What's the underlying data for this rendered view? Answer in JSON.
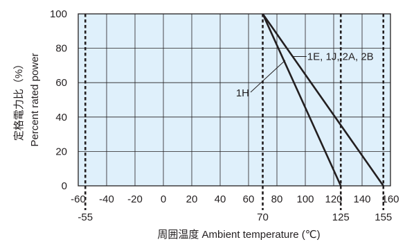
{
  "chart_data": {
    "type": "line",
    "title": "",
    "ylabel_jp": "定格電力比（%）",
    "ylabel_en": "Percent rated power",
    "xlabel": "周囲温度 Ambient temperature (℃)",
    "xlim": [
      -60,
      160
    ],
    "ylim": [
      0,
      100
    ],
    "xticks": [
      "-60",
      "-40",
      "-20",
      "0",
      "20",
      "40",
      "60",
      "80",
      "100",
      "120",
      "140",
      "160"
    ],
    "xtick_values": [
      -60,
      -40,
      -20,
      0,
      20,
      40,
      60,
      80,
      100,
      120,
      140,
      160
    ],
    "yticks": [
      "0",
      "20",
      "40",
      "60",
      "80",
      "100"
    ],
    "ytick_values": [
      0,
      20,
      40,
      60,
      80,
      100
    ],
    "grid": true,
    "background_color": "#dff0fb",
    "grid_color": "#231f20",
    "line_color": "#231f20",
    "markers": [
      {
        "x": -55,
        "label": "-55"
      },
      {
        "x": 70,
        "label": "70"
      },
      {
        "x": 125,
        "label": "125"
      },
      {
        "x": 155,
        "label": "155"
      }
    ],
    "series": [
      {
        "name": "1E, 1J, 2A, 2B",
        "x": [
          70,
          155
        ],
        "y": [
          100,
          0
        ]
      },
      {
        "name": "1H",
        "x": [
          70,
          125
        ],
        "y": [
          100,
          0
        ]
      }
    ]
  }
}
